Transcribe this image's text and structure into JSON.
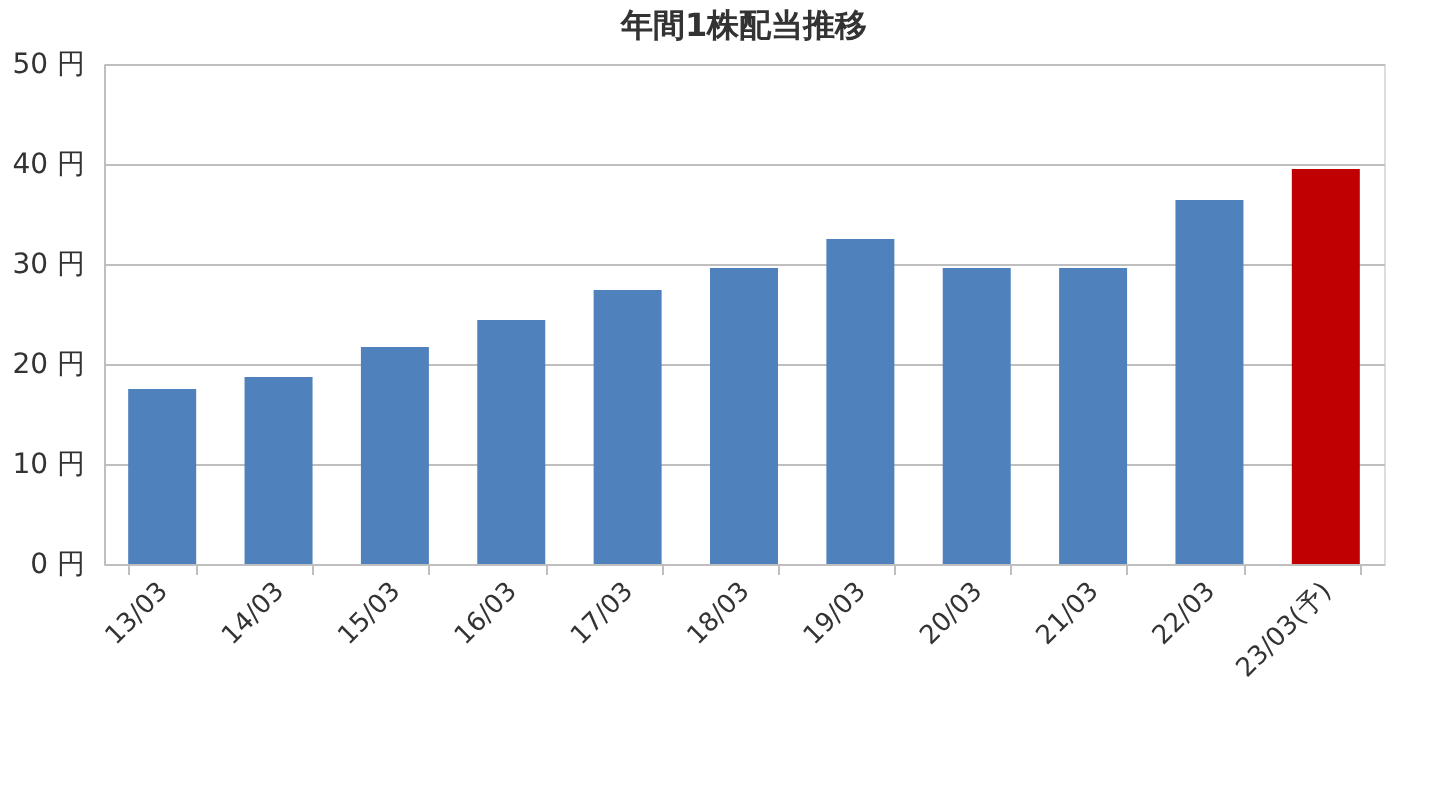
{
  "chart_data": {
    "type": "bar",
    "title": "年間1株配当推移",
    "categories": [
      "13/03",
      "14/03",
      "15/03",
      "16/03",
      "17/03",
      "18/03",
      "19/03",
      "20/03",
      "21/03",
      "22/03",
      "23/03(予)"
    ],
    "values": [
      17.5,
      18.7,
      21.7,
      24.4,
      27.4,
      29.6,
      32.5,
      29.6,
      29.6,
      36.4,
      39.5
    ],
    "colors": [
      "#4f81bd",
      "#4f81bd",
      "#4f81bd",
      "#4f81bd",
      "#4f81bd",
      "#4f81bd",
      "#4f81bd",
      "#4f81bd",
      "#4f81bd",
      "#4f81bd",
      "#c00000"
    ],
    "ylim": [
      0,
      50
    ],
    "yticks": [
      {
        "value": 0,
        "label": "0 円"
      },
      {
        "value": 10,
        "label": "10 円"
      },
      {
        "value": 20,
        "label": "20 円"
      },
      {
        "value": 30,
        "label": "30 円"
      },
      {
        "value": 40,
        "label": "40 円"
      },
      {
        "value": 50,
        "label": "50 円"
      }
    ],
    "grid": "y"
  }
}
